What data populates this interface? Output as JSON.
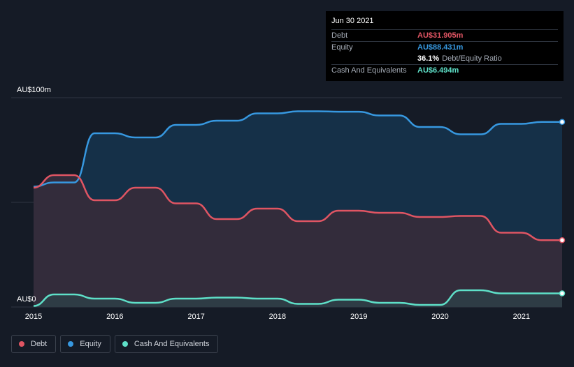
{
  "tooltip": {
    "date": "Jun 30 2021",
    "debt_label": "Debt",
    "debt_value": "AU$31.905m",
    "equity_label": "Equity",
    "equity_value": "AU$88.431m",
    "ratio_value": "36.1%",
    "ratio_label": "Debt/Equity Ratio",
    "cash_label": "Cash And Equivalents",
    "cash_value": "AU$6.494m"
  },
  "legend": [
    {
      "label": "Debt",
      "color": "#e05563"
    },
    {
      "label": "Equity",
      "color": "#3798e0"
    },
    {
      "label": "Cash And Equivalents",
      "color": "#5ee0c8"
    }
  ],
  "colors": {
    "debt": "#e05563",
    "equity": "#3798e0",
    "cash": "#5ee0c8",
    "background": "#151b26"
  },
  "chart_data": {
    "type": "area",
    "y_unit": "AU$m",
    "y_top_label": "AU$100m",
    "y_bottom_label": "AU$0",
    "ylim": [
      0,
      100
    ],
    "xlim": [
      2015.0,
      2021.5
    ],
    "x_tick_labels": [
      "2015",
      "2016",
      "2017",
      "2018",
      "2019",
      "2020",
      "2021"
    ],
    "grid": true,
    "legend_position": "bottom-left",
    "series": [
      {
        "name": "Equity",
        "points": [
          [
            2015.0,
            57.5
          ],
          [
            2015.25,
            59.5
          ],
          [
            2015.5,
            59.5
          ],
          [
            2015.75,
            83
          ],
          [
            2016.0,
            83
          ],
          [
            2016.25,
            81
          ],
          [
            2016.5,
            81
          ],
          [
            2016.75,
            87
          ],
          [
            2017.0,
            87
          ],
          [
            2017.25,
            89
          ],
          [
            2017.5,
            89
          ],
          [
            2017.75,
            92.5
          ],
          [
            2018.0,
            92.5
          ],
          [
            2018.25,
            93.5
          ],
          [
            2018.5,
            93.5
          ],
          [
            2018.75,
            93.3
          ],
          [
            2019.0,
            93.3
          ],
          [
            2019.25,
            91.5
          ],
          [
            2019.5,
            91.5
          ],
          [
            2019.75,
            86
          ],
          [
            2020.0,
            86
          ],
          [
            2020.25,
            82.5
          ],
          [
            2020.5,
            82.5
          ],
          [
            2020.75,
            87.5
          ],
          [
            2021.0,
            87.5
          ],
          [
            2021.25,
            88.4
          ],
          [
            2021.5,
            88.4
          ]
        ]
      },
      {
        "name": "Debt",
        "points": [
          [
            2015.0,
            57
          ],
          [
            2015.25,
            63
          ],
          [
            2015.5,
            63
          ],
          [
            2015.75,
            51
          ],
          [
            2016.0,
            51
          ],
          [
            2016.25,
            57
          ],
          [
            2016.5,
            57
          ],
          [
            2016.75,
            49.5
          ],
          [
            2017.0,
            49.5
          ],
          [
            2017.25,
            42
          ],
          [
            2017.5,
            42
          ],
          [
            2017.75,
            47
          ],
          [
            2018.0,
            47
          ],
          [
            2018.25,
            41
          ],
          [
            2018.5,
            41
          ],
          [
            2018.75,
            46
          ],
          [
            2018.85,
            46
          ],
          [
            2019.0,
            46
          ],
          [
            2019.25,
            45
          ],
          [
            2019.5,
            45
          ],
          [
            2019.75,
            43
          ],
          [
            2020.0,
            43
          ],
          [
            2020.25,
            43.5
          ],
          [
            2020.5,
            43.5
          ],
          [
            2020.75,
            35.5
          ],
          [
            2021.0,
            35.5
          ],
          [
            2021.25,
            31.9
          ],
          [
            2021.5,
            31.9
          ]
        ]
      },
      {
        "name": "Cash And Equivalents",
        "points": [
          [
            2015.0,
            0.5
          ],
          [
            2015.25,
            6
          ],
          [
            2015.5,
            6
          ],
          [
            2015.75,
            4
          ],
          [
            2016.0,
            4
          ],
          [
            2016.25,
            2
          ],
          [
            2016.5,
            2
          ],
          [
            2016.75,
            4
          ],
          [
            2017.0,
            4
          ],
          [
            2017.25,
            4.5
          ],
          [
            2017.5,
            4.5
          ],
          [
            2017.75,
            4
          ],
          [
            2018.0,
            4
          ],
          [
            2018.25,
            1.5
          ],
          [
            2018.5,
            1.5
          ],
          [
            2018.75,
            3.5
          ],
          [
            2019.0,
            3.5
          ],
          [
            2019.25,
            2
          ],
          [
            2019.5,
            2
          ],
          [
            2019.75,
            1
          ],
          [
            2020.0,
            1
          ],
          [
            2020.25,
            8
          ],
          [
            2020.5,
            8
          ],
          [
            2020.75,
            6.5
          ],
          [
            2021.0,
            6.5
          ],
          [
            2021.25,
            6.5
          ],
          [
            2021.5,
            6.5
          ]
        ]
      }
    ]
  }
}
